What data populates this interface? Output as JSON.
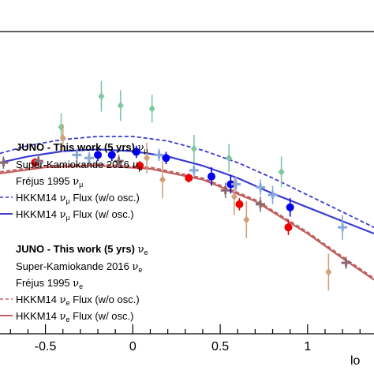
{
  "chart_data": {
    "type": "scatter",
    "x_ticks": [
      "-0.5",
      "0",
      "0.5",
      "1"
    ],
    "x_tick_values": [
      -0.5,
      0,
      0.5,
      1
    ],
    "xlabel_fragment": "lo",
    "xlim": [
      -0.76,
      1.38
    ],
    "ylim": [
      0.02,
      1.0
    ],
    "log_y": false,
    "grid": false,
    "legend_position": "left",
    "series": [
      {
        "name": "JUNO - This work (5 yrs) νμ",
        "kind": "points",
        "color": "#0000ee",
        "marker": "circle",
        "points": [
          {
            "x": -0.2,
            "y": 0.6,
            "err": 0.02
          },
          {
            "x": -0.12,
            "y": 0.6,
            "err": 0.02
          },
          {
            "x": 0.02,
            "y": 0.61,
            "err": 0.02
          },
          {
            "x": 0.19,
            "y": 0.59,
            "err": 0.02
          },
          {
            "x": 0.45,
            "y": 0.53,
            "err": 0.03
          },
          {
            "x": 0.56,
            "y": 0.505,
            "err": 0.03
          },
          {
            "x": 0.9,
            "y": 0.43,
            "err": 0.03
          }
        ]
      },
      {
        "name": "JUNO - This work (5 yrs) νe",
        "kind": "points",
        "color": "#ee0000",
        "marker": "circle",
        "points": [
          {
            "x": -0.56,
            "y": 0.575,
            "err": 0.015
          },
          {
            "x": 0.04,
            "y": 0.565,
            "err": 0.015
          },
          {
            "x": 0.32,
            "y": 0.525,
            "err": 0.015
          },
          {
            "x": 0.61,
            "y": 0.44,
            "err": 0.02
          },
          {
            "x": 0.89,
            "y": 0.365,
            "err": 0.025
          }
        ]
      },
      {
        "name": "Super-Kamiokande 2016 νμ",
        "kind": "cross",
        "color": "#87a8dc",
        "points": [
          {
            "x": -0.32,
            "y": 0.6,
            "err": 0.02
          },
          {
            "x": -0.25,
            "y": 0.59,
            "err": 0.02
          },
          {
            "x": 0.15,
            "y": 0.6,
            "err": 0.02
          },
          {
            "x": 0.35,
            "y": 0.55,
            "err": 0.02
          },
          {
            "x": 0.59,
            "y": 0.505,
            "err": 0.025
          },
          {
            "x": 0.73,
            "y": 0.495,
            "err": 0.025
          },
          {
            "x": 0.8,
            "y": 0.47,
            "err": 0.03
          },
          {
            "x": 1.2,
            "y": 0.365,
            "err": 0.04
          }
        ]
      },
      {
        "name": "Super-Kamiokande 2016 νe",
        "kind": "cross",
        "color": "#8a6a72",
        "points": [
          {
            "x": -0.74,
            "y": 0.575,
            "err": 0.02
          },
          {
            "x": -0.54,
            "y": 0.58,
            "err": 0.02
          },
          {
            "x": -0.08,
            "y": 0.58,
            "err": 0.02
          },
          {
            "x": 0.53,
            "y": 0.485,
            "err": 0.025
          },
          {
            "x": 0.73,
            "y": 0.44,
            "err": 0.025
          },
          {
            "x": 1.22,
            "y": 0.25,
            "err": 0.02
          }
        ]
      },
      {
        "name": "Fréjus 1995 νμ",
        "kind": "diamond",
        "color": "#7fc8a2",
        "points": [
          {
            "x": -0.18,
            "y": 0.79,
            "err": 0.05
          },
          {
            "x": -0.07,
            "y": 0.76,
            "err": 0.05
          },
          {
            "x": 0.11,
            "y": 0.75,
            "err": 0.045
          },
          {
            "x": -0.41,
            "y": 0.69,
            "err": 0.045
          },
          {
            "x": 0.35,
            "y": 0.62,
            "err": 0.045
          },
          {
            "x": 0.55,
            "y": 0.59,
            "err": 0.045
          },
          {
            "x": 0.85,
            "y": 0.545,
            "err": 0.05
          }
        ]
      },
      {
        "name": "Fréjus 1995 νe",
        "kind": "diamond",
        "color": "#d2a07a",
        "points": [
          {
            "x": -0.4,
            "y": 0.655,
            "err": 0.045
          },
          {
            "x": 0.08,
            "y": 0.59,
            "err": 0.05
          },
          {
            "x": 0.17,
            "y": 0.52,
            "err": 0.06
          },
          {
            "x": 0.58,
            "y": 0.465,
            "err": 0.06
          },
          {
            "x": 0.65,
            "y": 0.39,
            "err": 0.06
          },
          {
            "x": 1.12,
            "y": 0.22,
            "err": 0.06
          }
        ]
      },
      {
        "name": "HKKM14 νμ Flux (w/o osc.)",
        "kind": "line",
        "color": "#3a3ad0",
        "dash": true,
        "points": [
          {
            "x": -0.76,
            "y": 0.605
          },
          {
            "x": -0.6,
            "y": 0.63
          },
          {
            "x": -0.4,
            "y": 0.65
          },
          {
            "x": -0.2,
            "y": 0.66
          },
          {
            "x": 0.0,
            "y": 0.66
          },
          {
            "x": 0.2,
            "y": 0.645
          },
          {
            "x": 0.4,
            "y": 0.615
          },
          {
            "x": 0.6,
            "y": 0.575
          },
          {
            "x": 0.8,
            "y": 0.525
          },
          {
            "x": 1.0,
            "y": 0.47
          },
          {
            "x": 1.2,
            "y": 0.415
          },
          {
            "x": 1.38,
            "y": 0.365
          }
        ]
      },
      {
        "name": "HKKM14 νμ Flux (w/ osc.)",
        "kind": "line",
        "color": "#3a3ad0",
        "dash": false,
        "points": [
          {
            "x": -0.76,
            "y": 0.575
          },
          {
            "x": -0.6,
            "y": 0.595
          },
          {
            "x": -0.4,
            "y": 0.612
          },
          {
            "x": -0.2,
            "y": 0.618
          },
          {
            "x": 0.0,
            "y": 0.612
          },
          {
            "x": 0.2,
            "y": 0.595
          },
          {
            "x": 0.4,
            "y": 0.565
          },
          {
            "x": 0.6,
            "y": 0.525
          },
          {
            "x": 0.8,
            "y": 0.475
          },
          {
            "x": 1.0,
            "y": 0.43
          },
          {
            "x": 1.2,
            "y": 0.385
          },
          {
            "x": 1.38,
            "y": 0.345
          }
        ]
      },
      {
        "name": "HKKM14 νe Flux (w/o osc.)",
        "kind": "line",
        "color": "#c06060",
        "dash": true,
        "points": [
          {
            "x": -0.76,
            "y": 0.545
          },
          {
            "x": -0.5,
            "y": 0.565
          },
          {
            "x": -0.2,
            "y": 0.57
          },
          {
            "x": 0.1,
            "y": 0.56
          },
          {
            "x": 0.4,
            "y": 0.525
          },
          {
            "x": 0.7,
            "y": 0.455
          },
          {
            "x": 1.0,
            "y": 0.35
          },
          {
            "x": 1.2,
            "y": 0.27
          },
          {
            "x": 1.38,
            "y": 0.2
          }
        ]
      },
      {
        "name": "HKKM14 νe Flux (w/ osc.)",
        "kind": "line",
        "color": "#c06060",
        "dash": false,
        "points": [
          {
            "x": -0.76,
            "y": 0.54
          },
          {
            "x": -0.5,
            "y": 0.56
          },
          {
            "x": -0.2,
            "y": 0.565
          },
          {
            "x": 0.1,
            "y": 0.555
          },
          {
            "x": 0.4,
            "y": 0.52
          },
          {
            "x": 0.7,
            "y": 0.45
          },
          {
            "x": 1.0,
            "y": 0.345
          },
          {
            "x": 1.2,
            "y": 0.265
          },
          {
            "x": 1.38,
            "y": 0.195
          }
        ]
      }
    ],
    "legend_mu": {
      "title_prefix": "JUNO - This work (5 yrs) ",
      "title_nu": "ν",
      "title_sub": "μ",
      "sk": "Super-Kamiokande 2016 ",
      "sk_nu": "ν",
      "sk_sub": "μ",
      "frejus": "Fréjus 1995 ",
      "frejus_nu": "ν",
      "frejus_sub": "μ",
      "hk_noosc_a": "HKKM14 ",
      "hk_noosc_nu": "ν",
      "hk_noosc_sub": "μ",
      "hk_noosc_b": " Flux (w/o osc.)",
      "hk_osc_a": "HKKM14 ",
      "hk_osc_nu": "ν",
      "hk_osc_sub": "μ",
      "hk_osc_b": " Flux (w/ osc.)"
    },
    "legend_e": {
      "title_prefix": "JUNO - This work (5 yrs) ",
      "title_nu": "ν",
      "title_sub": "e",
      "sk": "Super-Kamiokande 2016 ",
      "sk_nu": "ν",
      "sk_sub": "e",
      "frejus": "Fréjus 1995 ",
      "frejus_nu": "ν",
      "frejus_sub": "e",
      "hk_noosc_a": "HKKM14 ",
      "hk_noosc_nu": "ν",
      "hk_noosc_sub": "e",
      "hk_noosc_b": " Flux (w/o osc.)",
      "hk_osc_a": "HKKM14 ",
      "hk_osc_nu": "ν",
      "hk_osc_sub": "e",
      "hk_osc_b": " Flux (w/ osc.)"
    }
  }
}
